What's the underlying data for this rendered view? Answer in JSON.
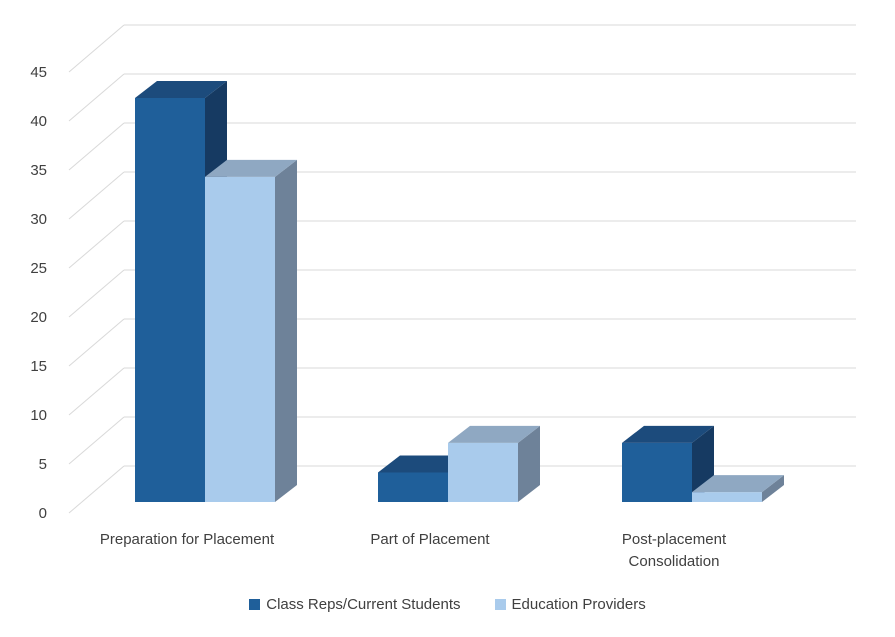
{
  "chart_data": {
    "type": "bar",
    "title": "",
    "xlabel": "",
    "ylabel": "",
    "ylim": [
      0,
      45
    ],
    "yticks": [
      "0",
      "5",
      "10",
      "15",
      "20",
      "25",
      "30",
      "35",
      "40",
      "45"
    ],
    "categories": [
      [
        "Preparation for Placement"
      ],
      [
        "Part of Placement"
      ],
      [
        "Post-placement",
        "Consolidation"
      ]
    ],
    "series": [
      {
        "name": "Class Reps/Current Students",
        "values": [
          41,
          3,
          6
        ]
      },
      {
        "name": "Education Providers",
        "values": [
          33,
          6,
          1
        ]
      }
    ],
    "colors": {
      "series": [
        "#1F5F9A",
        "#A9CBEC"
      ],
      "series_side": [
        "#163A62",
        "#6E8299"
      ],
      "series_top": [
        "#1C4B7C",
        "#8FA8C2"
      ],
      "grid": "#D9D9D9"
    },
    "grid": true,
    "legend_position": "bottom",
    "style": "3d-clustered-column"
  }
}
